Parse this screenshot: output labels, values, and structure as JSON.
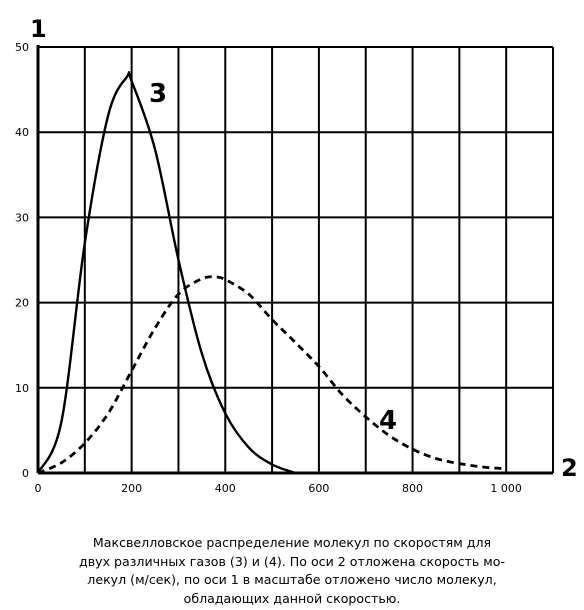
{
  "chart_data": {
    "type": "line",
    "axis_labels": {
      "y": "1",
      "x": "2"
    },
    "xlim": [
      0,
      1100
    ],
    "ylim": [
      0,
      50
    ],
    "x_ticks": [
      {
        "value": 0,
        "label": "0"
      },
      {
        "value": 200,
        "label": "200"
      },
      {
        "value": 400,
        "label": "400"
      },
      {
        "value": 600,
        "label": "600"
      },
      {
        "value": 800,
        "label": "800"
      },
      {
        "value": 1000,
        "label": "1 000"
      }
    ],
    "y_ticks": [
      {
        "value": 0,
        "label": "0"
      },
      {
        "value": 10,
        "label": "10"
      },
      {
        "value": 20,
        "label": "20"
      },
      {
        "value": 30,
        "label": "30"
      },
      {
        "value": 40,
        "label": "40"
      },
      {
        "value": 50,
        "label": "50"
      }
    ],
    "grid": true,
    "series": [
      {
        "name": "3",
        "style": "solid",
        "x": [
          0,
          50,
          100,
          150,
          190,
          200,
          250,
          300,
          350,
          400,
          450,
          500,
          550
        ],
        "y": [
          0,
          6,
          27,
          42,
          46.5,
          46,
          38,
          25,
          14,
          7,
          3,
          1,
          0
        ]
      },
      {
        "name": "4",
        "style": "dashed",
        "x": [
          0,
          50,
          100,
          150,
          200,
          250,
          300,
          350,
          380,
          400,
          450,
          500,
          550,
          600,
          650,
          700,
          750,
          800,
          850,
          900,
          950,
          1000
        ],
        "y": [
          0,
          1.2,
          3.5,
          7,
          12,
          17,
          21,
          22.8,
          23,
          22.7,
          21,
          18,
          15.3,
          12.5,
          9.2,
          6.6,
          4.4,
          2.8,
          1.7,
          1.1,
          0.7,
          0.5
        ]
      }
    ]
  },
  "caption": [
    "Максвелловское распределение  молекул  по  скоростям для",
    "двух различных газов (3) и (4). По оси 2 отложена скорость мо-",
    "лекул (м/сек), по оси 1   в масштабе отложено число молекул,",
    "обладающих данной скоростью."
  ],
  "colors": {
    "ink": "#000000",
    "background": "#ffffff"
  }
}
